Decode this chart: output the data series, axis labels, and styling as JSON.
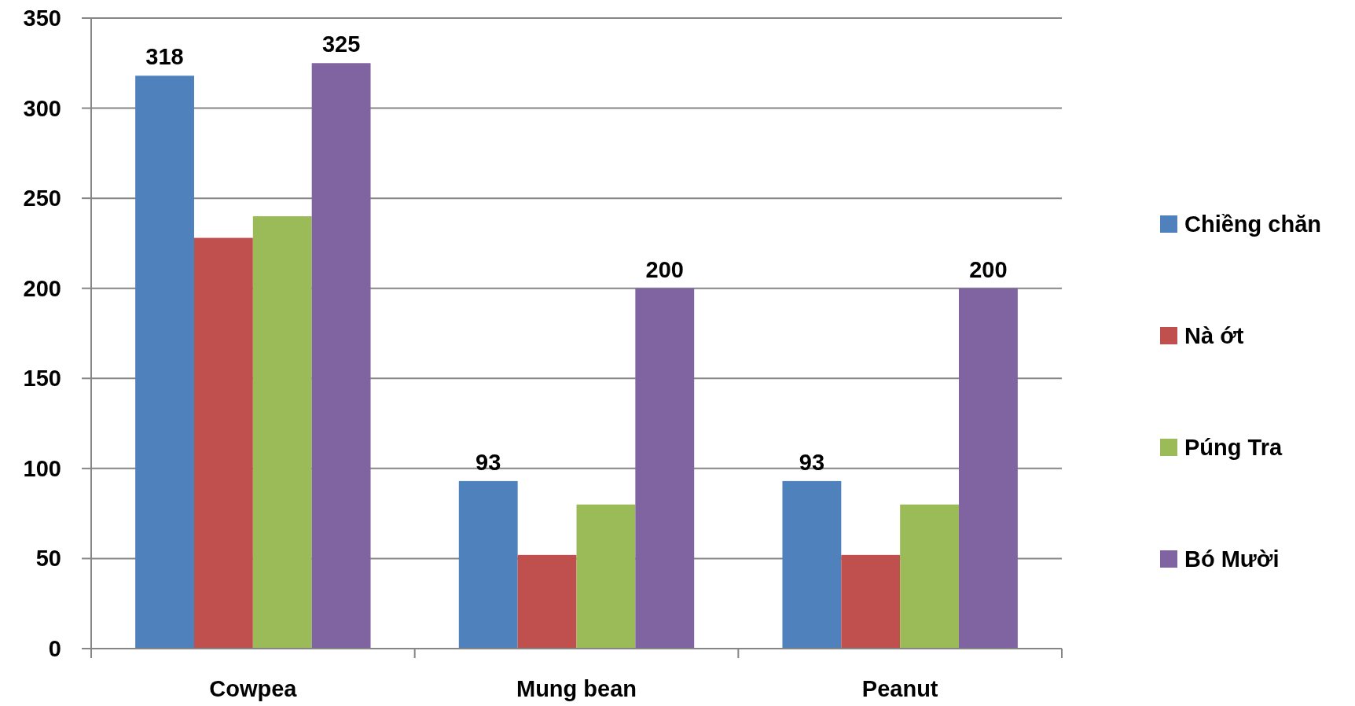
{
  "chart_data": {
    "type": "bar",
    "categories": [
      "Cowpea",
      "Mung bean",
      "Peanut"
    ],
    "series": [
      {
        "name": "Chiềng chăn",
        "color": "#4f81bd",
        "values": [
          318,
          93,
          93
        ],
        "value_labels": [
          "318",
          "93",
          "93"
        ]
      },
      {
        "name": "Nà ớt",
        "color": "#c0504d",
        "values": [
          228,
          52,
          52
        ]
      },
      {
        "name": "Púng Tra",
        "color": "#9bbb59",
        "values": [
          240,
          80,
          80
        ]
      },
      {
        "name": "Bó Mười",
        "color": "#8064a2",
        "values": [
          325,
          200,
          200
        ],
        "value_labels": [
          "325",
          "200",
          "200"
        ]
      }
    ],
    "ylim": [
      0,
      350
    ],
    "yticks": [
      0,
      50,
      100,
      150,
      200,
      250,
      300,
      350
    ],
    "grid": "y",
    "legend": "right"
  }
}
